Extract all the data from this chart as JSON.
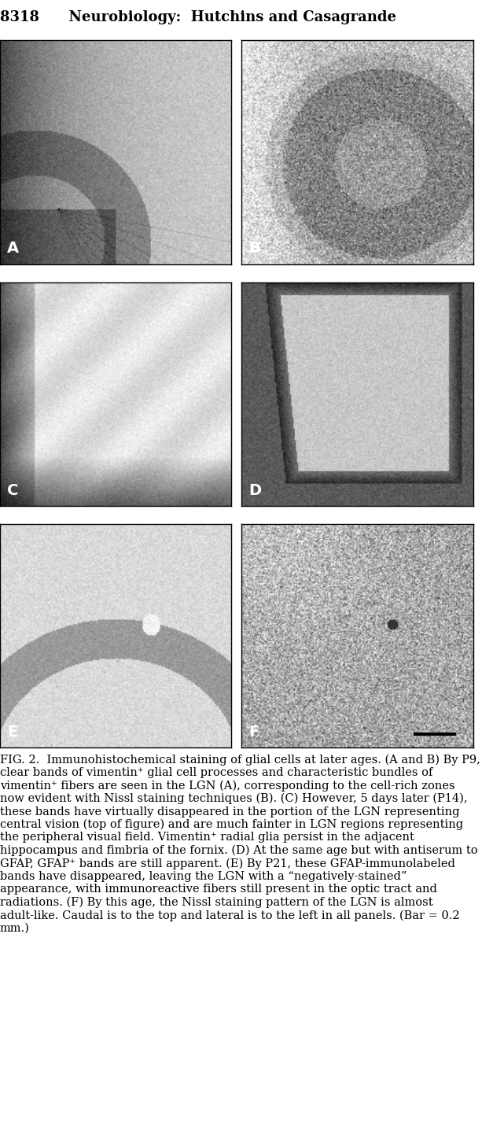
{
  "header_text": "8318      Neurobiology:  Hutchins and Casagrande",
  "header_fontsize": 13,
  "header_bold": true,
  "panel_labels": [
    "A",
    "B",
    "C",
    "D",
    "E",
    "F"
  ],
  "label_fontsize": 14,
  "caption_title": "FIG. 2.",
  "caption_body": "  Immunohistochemical staining of glial cells at later ages. (A and B) By P9, clear bands of vimentin⁺ glial cell processes and characteristic bundles of vimentin⁺ fibers are seen in the LGN (A), corresponding to the cell-rich zones now evident with Nissl staining techniques (B). (C) However, 5 days later (P14), these bands have virtually disappeared in the portion of the LGN representing central vision (top of figure) and are much fainter in LGN regions representing the peripheral visual field. Vimentin⁺ radial glia persist in the adjacent hippocampus and fimbria of the fornix. (D) At the same age but with antiserum to GFAP, GFAP⁺ bands are still apparent. (E) By P21, these GFAP-immunolabeled bands have disappeared, leaving the LGN with a “negatively-stained” appearance, with immunoreactive fibers still present in the optic tract and radiations. (F) By this age, the Nissl staining pattern of the LGN is almost adult-like. Caudal is to the top and lateral is to the left in all panels. (Bar = 0.2 mm.)",
  "caption_fontsize": 10.5,
  "figure_width": 6.4,
  "figure_height": 14.86,
  "bg_color": "#ffffff",
  "panel_bg": "#d0c8c0",
  "panel_border_color": "#000000",
  "n_rows": 3,
  "n_cols": 2,
  "panels": [
    {
      "label": "A",
      "bg_gradient": "dark_left_vimentin",
      "description": "Dark staining on left edge, radiating fibers, lighter center-right"
    },
    {
      "label": "B",
      "bg_gradient": "concentric_dark",
      "description": "Concentric dark bands, granular texture"
    },
    {
      "label": "C",
      "bg_gradient": "faint_bands",
      "description": "Lighter, faint diagonal bands, dark left edge"
    },
    {
      "label": "D",
      "bg_gradient": "dark_border_shape",
      "description": "Dark border around lighter interior trapezoid shape"
    },
    {
      "label": "E",
      "bg_gradient": "faint_arch",
      "description": "Light with faint arch at bottom, small bright spot"
    },
    {
      "label": "F",
      "bg_gradient": "granular_dark",
      "description": "Granular dark texture throughout"
    }
  ]
}
